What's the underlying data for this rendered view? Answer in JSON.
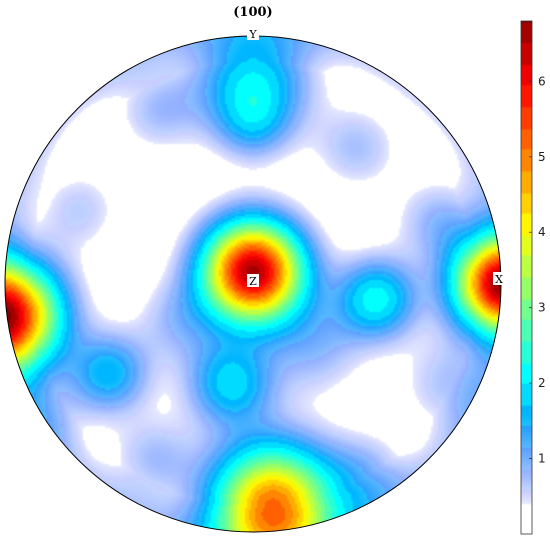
{
  "chart_data": {
    "type": "heatmap",
    "title": "(100)",
    "subtype": "pole figure",
    "axis_labels": {
      "top": "Y",
      "right": "X",
      "center": "Z"
    },
    "colorbar": {
      "min": 0,
      "max": 6.8,
      "ticks": [
        1,
        2,
        3,
        4,
        5,
        6
      ],
      "tick_labels": [
        "1",
        "2",
        "3",
        "4",
        "5",
        "6"
      ],
      "colormap": "jet (white below ~0.4)"
    },
    "peaks": [
      {
        "label": "center (Z)",
        "x": 0.0,
        "y": 0.05,
        "value": 6.6
      },
      {
        "label": "right edge (X)",
        "x": 1.0,
        "y": 0.0,
        "value": 6.4
      },
      {
        "label": "left edge",
        "x": -1.0,
        "y": -0.13,
        "value": 6.5
      },
      {
        "label": "bottom",
        "x": 0.08,
        "y": -0.9,
        "value": 5.2
      },
      {
        "label": "right cluster",
        "x": 0.5,
        "y": -0.06,
        "value": 2.1
      },
      {
        "label": "lower center",
        "x": -0.09,
        "y": -0.4,
        "value": 1.8
      },
      {
        "label": "lower left",
        "x": -0.58,
        "y": -0.36,
        "value": 1.6
      },
      {
        "label": "top (Y)",
        "x": 0.0,
        "y": 0.82,
        "value": 1.9
      }
    ]
  }
}
